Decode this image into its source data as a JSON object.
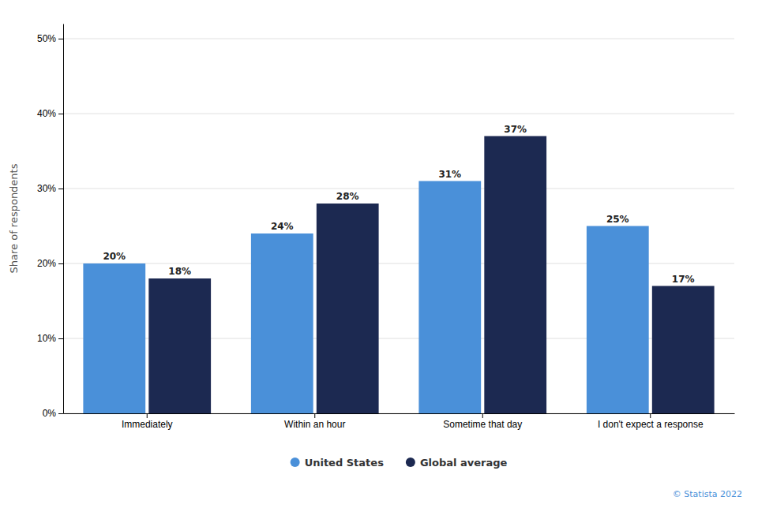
{
  "chart_data": {
    "type": "bar",
    "categories": [
      "Immediately",
      "Within an hour",
      "Sometime that day",
      "I don't expect a response"
    ],
    "series": [
      {
        "name": "United States",
        "color": "#4a90d9",
        "values": [
          20,
          24,
          31,
          25
        ],
        "value_labels": [
          "20%",
          "24%",
          "31%",
          "25%"
        ]
      },
      {
        "name": "Global average",
        "color": "#1c2951",
        "values": [
          18,
          28,
          37,
          17
        ],
        "value_labels": [
          "18%",
          "28%",
          "37%",
          "17%"
        ]
      }
    ],
    "ylabel": "Share of respondents",
    "ylim": [
      0,
      52
    ],
    "yticks": [
      {
        "value": 0,
        "label": "0%"
      },
      {
        "value": 10,
        "label": "10%"
      },
      {
        "value": 20,
        "label": "20%"
      },
      {
        "value": 30,
        "label": "30%"
      },
      {
        "value": 40,
        "label": "40%"
      },
      {
        "value": 50,
        "label": "50%"
      }
    ],
    "grid": true,
    "legend": "bottom",
    "data_labels": true,
    "annotations": [
      {
        "text": "© Statista 2022",
        "color": "#4a90d9"
      }
    ]
  }
}
